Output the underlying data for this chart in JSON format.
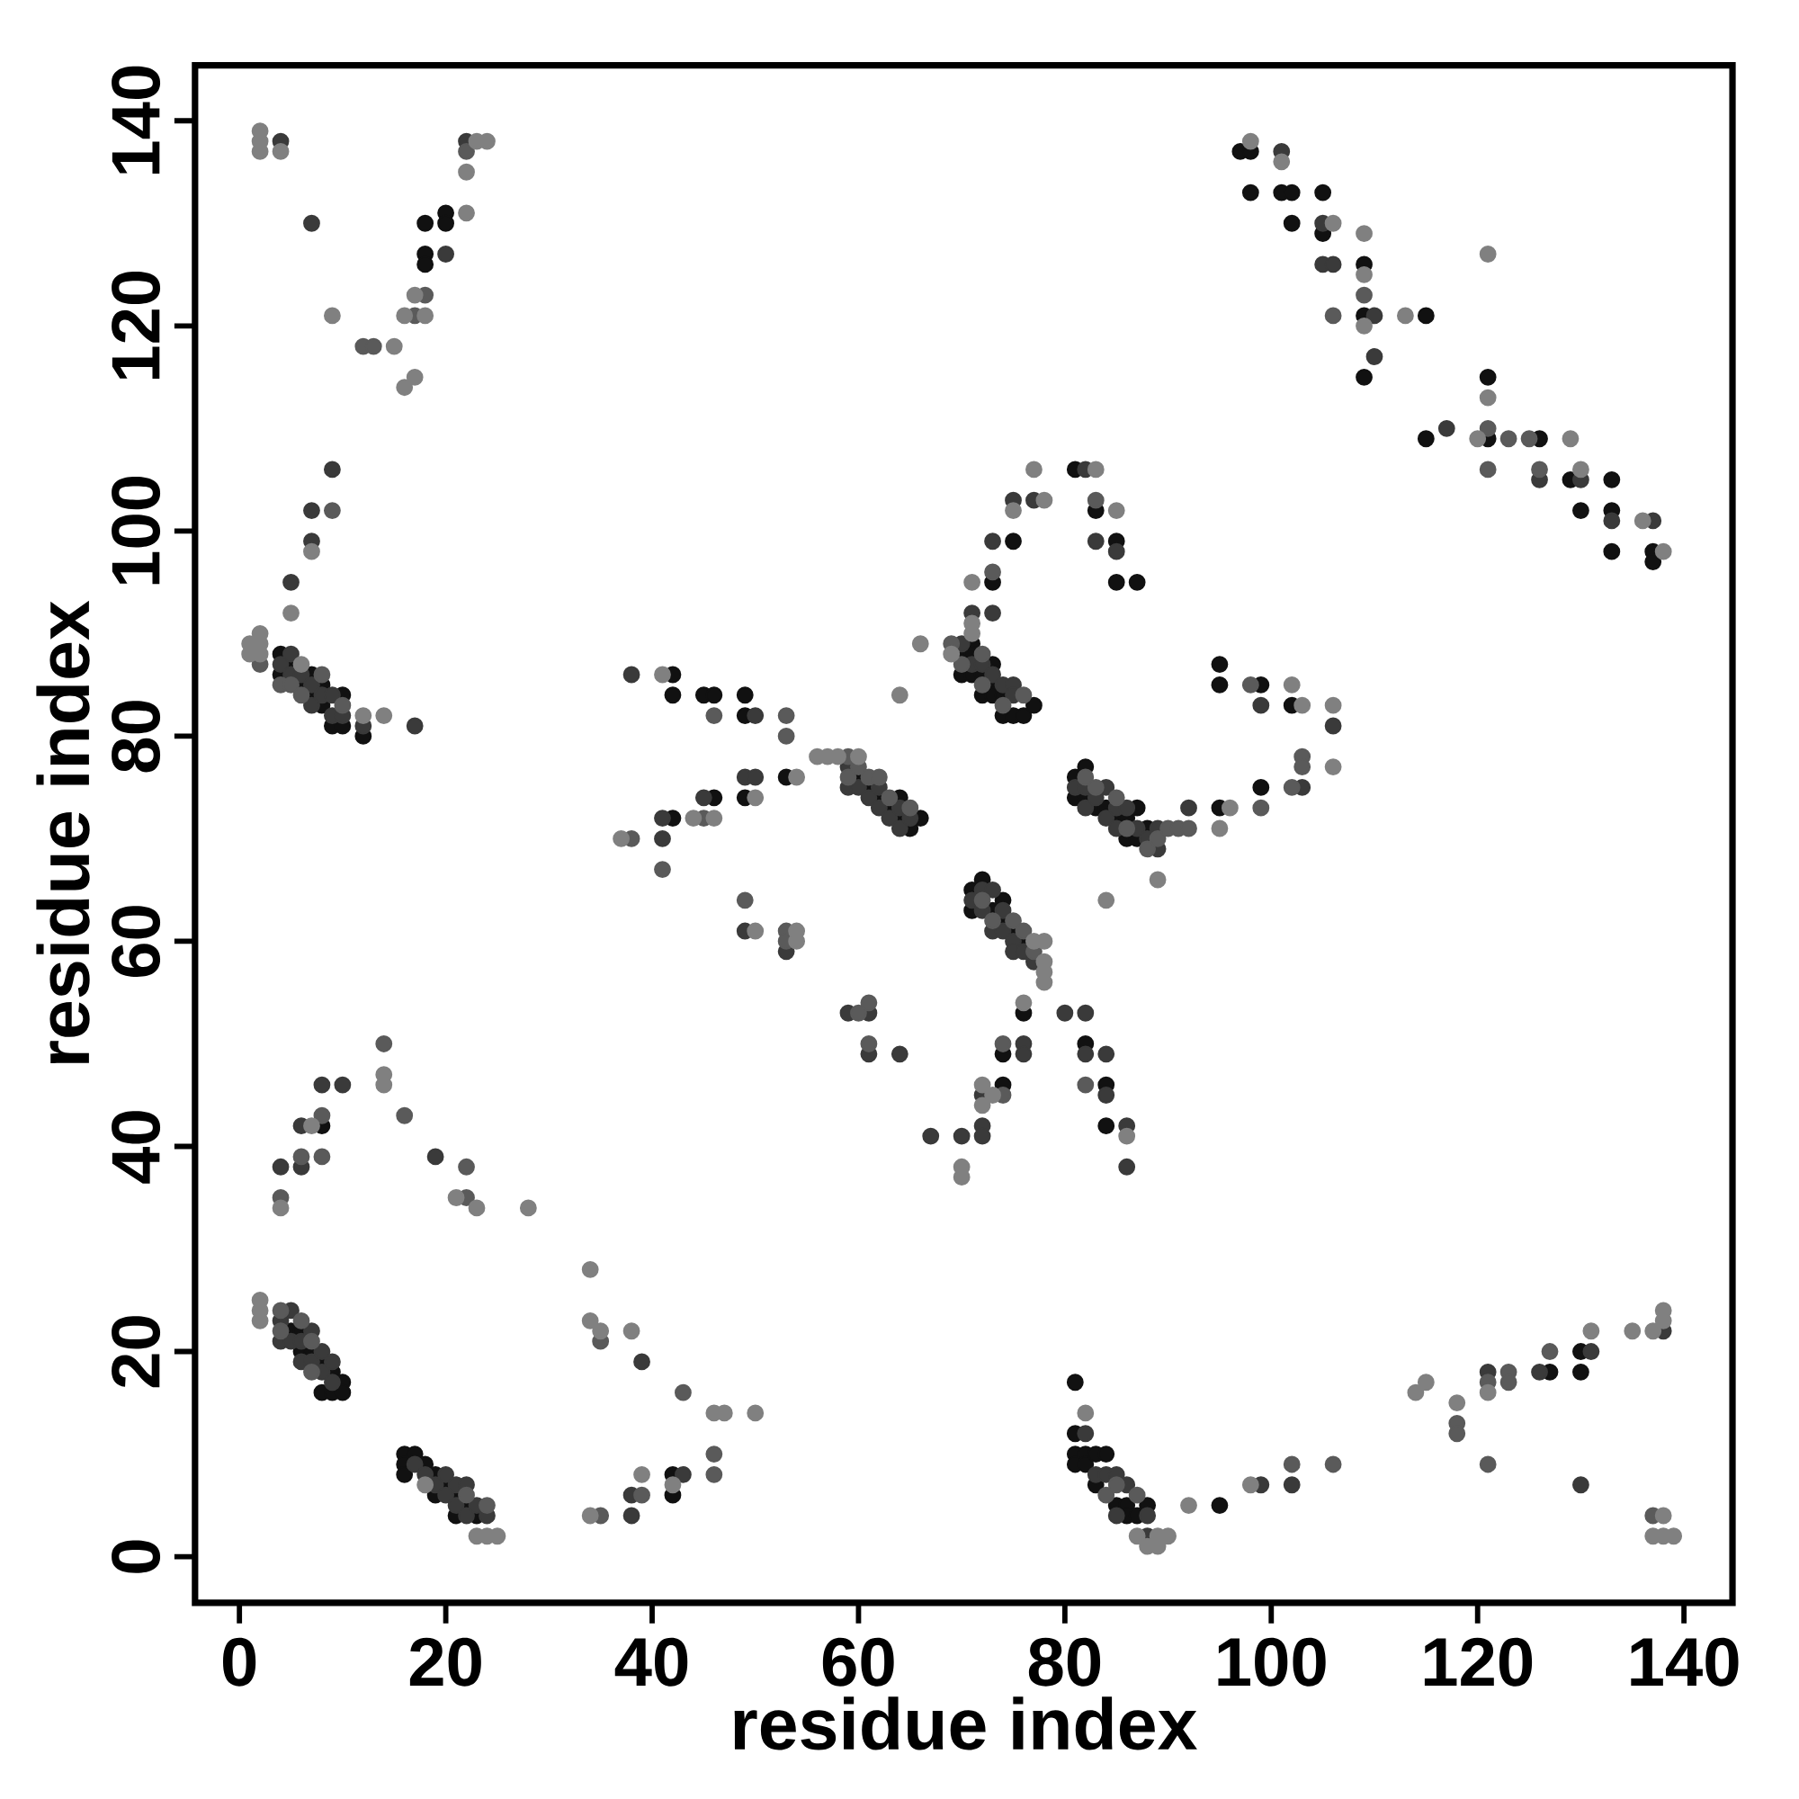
{
  "chart_data": {
    "type": "scatter",
    "xlabel": "residue index",
    "ylabel": "residue index",
    "xlim": [
      -4.3,
      144.7
    ],
    "ylim": [
      -4.5,
      145.4
    ],
    "xticks": [
      0,
      20,
      40,
      60,
      80,
      100,
      120,
      140
    ],
    "yticks": [
      0,
      20,
      40,
      60,
      80,
      100,
      120,
      140
    ],
    "marker": "circle",
    "series": [
      {
        "color": "#111111",
        "x": [
          5,
          6,
          6,
          7,
          8,
          8,
          9,
          9,
          10,
          10,
          16,
          16,
          16,
          17,
          18,
          19,
          19,
          20,
          21,
          21,
          22,
          23,
          81,
          81,
          81,
          81,
          82,
          82,
          83,
          83,
          84,
          85,
          86,
          86,
          87,
          88,
          95,
          127,
          130,
          130,
          42,
          42,
          8,
          4,
          4,
          5,
          6,
          7,
          7,
          8,
          8,
          9,
          10,
          10,
          12,
          18,
          18,
          18,
          20,
          20,
          42,
          42,
          42,
          45,
          46,
          46,
          49,
          49,
          49,
          53,
          60,
          61,
          62,
          63,
          64,
          64,
          65,
          66,
          70,
          70,
          71,
          71,
          71,
          72,
          72,
          73,
          73,
          73,
          73,
          74,
          74,
          75,
          75,
          76,
          77,
          81,
          83,
          85,
          85,
          87,
          71,
          71,
          72,
          73,
          74,
          74,
          75,
          76,
          76,
          74,
          74,
          82,
          84,
          84,
          81,
          81,
          82,
          82,
          83,
          84,
          85,
          86,
          86,
          87,
          87,
          88,
          95,
          95,
          95,
          99,
          99,
          102,
          97,
          98,
          98,
          101,
          102,
          102,
          105,
          105,
          109,
          109,
          109,
          115,
          115,
          121,
          121,
          126,
          129,
          130,
          133,
          133,
          133,
          137,
          137
        ],
        "values": [
          22,
          22,
          20,
          20,
          19,
          16,
          18,
          16,
          17,
          16,
          10,
          9,
          8,
          10,
          9,
          8,
          6,
          7,
          6,
          4,
          5,
          4,
          12,
          17,
          10,
          9,
          10,
          9,
          10,
          7,
          10,
          5,
          5,
          4,
          4,
          5,
          5,
          18,
          20,
          18,
          8,
          6,
          42,
          88,
          86,
          87,
          85,
          86,
          84,
          85,
          83,
          81,
          84,
          81,
          80,
          127,
          126,
          130,
          131,
          130,
          86,
          84,
          72,
          84,
          84,
          74,
          84,
          82,
          74,
          76,
          76,
          75,
          74,
          73,
          74,
          72,
          71,
          72,
          88,
          86,
          89,
          88,
          86,
          86,
          84,
          95,
          87,
          85,
          84,
          84,
          82,
          99,
          82,
          82,
          83,
          106,
          102,
          99,
          95,
          95,
          65,
          63,
          66,
          63,
          64,
          62,
          61,
          60,
          53,
          49,
          46,
          50,
          46,
          42,
          76,
          74,
          77,
          74,
          73,
          73,
          72,
          72,
          70,
          73,
          70,
          71,
          87,
          85,
          73,
          85,
          75,
          83,
          137,
          137,
          133,
          133,
          133,
          130,
          133,
          129,
          126,
          121,
          115,
          121,
          109,
          115,
          109,
          109,
          105,
          102,
          105,
          102,
          98,
          98,
          97
        ]
      },
      {
        "color": "#3a3a3a",
        "x": [
          4,
          4,
          5,
          5,
          6,
          6,
          7,
          7,
          8,
          8,
          9,
          9,
          17,
          18,
          19,
          20,
          20,
          21,
          21,
          22,
          22,
          23,
          24,
          82,
          83,
          84,
          85,
          85,
          86,
          88,
          88,
          99,
          102,
          121,
          126,
          130,
          131,
          138,
          39,
          38,
          38,
          43,
          4,
          6,
          6,
          8,
          10,
          19,
          4,
          5,
          5,
          6,
          7,
          7,
          8,
          9,
          9,
          10,
          12,
          17,
          5,
          7,
          7,
          9,
          4,
          7,
          20,
          22,
          38,
          41,
          41,
          45,
          49,
          49,
          50,
          50,
          53,
          59,
          59,
          60,
          61,
          62,
          62,
          63,
          64,
          64,
          65,
          59,
          61,
          61,
          64,
          67,
          70,
          70,
          71,
          71,
          72,
          73,
          73,
          73,
          74,
          75,
          75,
          75,
          77,
          82,
          83,
          85,
          71,
          72,
          72,
          73,
          73,
          74,
          74,
          75,
          75,
          76,
          77,
          76,
          76,
          72,
          72,
          72,
          80,
          82,
          82,
          84,
          84,
          86,
          86,
          81,
          82,
          82,
          83,
          84,
          84,
          85,
          85,
          86,
          87,
          88,
          89,
          89,
          92,
          99,
          103,
          106,
          101,
          105,
          105,
          106,
          110,
          110,
          117,
          126,
          130,
          133,
          137
        ],
        "values": [
          23,
          21,
          24,
          21,
          21,
          19,
          22,
          19,
          20,
          18,
          19,
          17,
          9,
          8,
          7,
          8,
          6,
          7,
          5,
          7,
          4,
          5,
          4,
          12,
          8,
          8,
          8,
          4,
          7,
          4,
          2,
          7,
          7,
          18,
          18,
          7,
          20,
          22,
          19,
          6,
          4,
          8,
          38,
          42,
          38,
          46,
          46,
          39,
          87,
          88,
          86,
          86,
          85,
          83,
          84,
          84,
          82,
          82,
          81,
          81,
          95,
          99,
          102,
          106,
          138,
          130,
          127,
          138,
          86,
          72,
          70,
          74,
          76,
          61,
          82,
          76,
          59,
          77,
          75,
          75,
          74,
          75,
          73,
          72,
          73,
          71,
          72,
          53,
          53,
          49,
          49,
          41,
          41,
          89,
          92,
          87,
          87,
          99,
          92,
          86,
          85,
          103,
          85,
          84,
          103,
          106,
          99,
          98,
          64,
          65,
          63,
          65,
          61,
          63,
          61,
          60,
          59,
          59,
          58,
          50,
          49,
          45,
          42,
          41,
          53,
          53,
          49,
          49,
          45,
          42,
          38,
          75,
          75,
          73,
          74,
          75,
          72,
          73,
          71,
          73,
          71,
          70,
          71,
          69,
          73,
          83,
          75,
          81,
          137,
          130,
          126,
          126,
          121,
          117,
          110,
          105,
          105,
          101,
          101
        ]
      },
      {
        "color": "#5a5a5a",
        "x": [
          4,
          4,
          6,
          7,
          7,
          22,
          24,
          84,
          85,
          87,
          102,
          106,
          118,
          118,
          121,
          121,
          123,
          123,
          127,
          137,
          35,
          35,
          39,
          43,
          46,
          46,
          4,
          6,
          8,
          8,
          14,
          16,
          22,
          22,
          2,
          4,
          5,
          6,
          8,
          10,
          9,
          12,
          13,
          17,
          18,
          22,
          38,
          41,
          45,
          46,
          49,
          53,
          53,
          53,
          53,
          59,
          59,
          60,
          61,
          62,
          63,
          65,
          60,
          61,
          61,
          69,
          70,
          72,
          72,
          73,
          74,
          76,
          83,
          72,
          73,
          75,
          76,
          77,
          74,
          74,
          82,
          82,
          83,
          85,
          86,
          88,
          89,
          90,
          91,
          92,
          98,
          99,
          103,
          103,
          102,
          106,
          109,
          121,
          121,
          123,
          125,
          126
        ],
        "values": [
          24,
          22,
          23,
          21,
          18,
          6,
          5,
          6,
          7,
          6,
          9,
          9,
          13,
          12,
          17,
          9,
          18,
          17,
          20,
          4,
          21,
          4,
          6,
          16,
          10,
          8,
          35,
          39,
          43,
          39,
          50,
          43,
          38,
          35,
          87,
          85,
          85,
          84,
          86,
          83,
          102,
          118,
          118,
          121,
          123,
          137,
          70,
          67,
          72,
          82,
          64,
          82,
          80,
          61,
          60,
          78,
          76,
          77,
          76,
          76,
          74,
          73,
          53,
          54,
          50,
          89,
          87,
          88,
          85,
          96,
          83,
          84,
          103,
          64,
          62,
          62,
          61,
          59,
          50,
          45,
          46,
          76,
          75,
          74,
          71,
          69,
          70,
          71,
          71,
          71,
          85,
          73,
          78,
          77,
          75,
          121,
          123,
          110,
          106,
          109,
          109,
          106
        ]
      },
      {
        "color": "#808080",
        "x": [
          2,
          2,
          2,
          18,
          23,
          24,
          25,
          82,
          87,
          88,
          89,
          89,
          90,
          92,
          98,
          114,
          115,
          118,
          121,
          131,
          135,
          137,
          138,
          138,
          138,
          137,
          138,
          139,
          34,
          34,
          35,
          34,
          38,
          39,
          42,
          46,
          47,
          50,
          4,
          7,
          14,
          14,
          21,
          23,
          28,
          1,
          1,
          2,
          2,
          2,
          6,
          12,
          14,
          5,
          7,
          2,
          2,
          2,
          4,
          9,
          15,
          16,
          16,
          17,
          17,
          18,
          22,
          22,
          23,
          24,
          37,
          41,
          44,
          46,
          50,
          50,
          54,
          54,
          54,
          56,
          57,
          58,
          60,
          64,
          66,
          70,
          70,
          69,
          71,
          71,
          71,
          75,
          77,
          78,
          83,
          85,
          77,
          78,
          78,
          78,
          78,
          76,
          72,
          72,
          73,
          86,
          84,
          89,
          95,
          96,
          102,
          103,
          106,
          106,
          98,
          101,
          106,
          109,
          109,
          109,
          113,
          120,
          121,
          121,
          129,
          130,
          136,
          138
        ],
        "values": [
          25,
          24,
          23,
          7,
          2,
          2,
          2,
          14,
          2,
          1,
          1,
          2,
          2,
          5,
          7,
          16,
          17,
          15,
          16,
          22,
          22,
          22,
          24,
          23,
          4,
          2,
          2,
          2,
          28,
          23,
          22,
          4,
          22,
          8,
          7,
          14,
          14,
          14,
          34,
          42,
          47,
          46,
          35,
          34,
          34,
          89,
          88,
          90,
          89,
          88,
          87,
          82,
          82,
          92,
          98,
          139,
          138,
          137,
          137,
          121,
          118,
          114,
          121,
          115,
          123,
          121,
          135,
          131,
          138,
          138,
          70,
          86,
          72,
          72,
          74,
          61,
          61,
          60,
          76,
          78,
          78,
          78,
          78,
          84,
          89,
          38,
          37,
          88,
          95,
          91,
          90,
          102,
          106,
          103,
          106,
          102,
          60,
          60,
          58,
          57,
          56,
          54,
          46,
          44,
          45,
          41,
          64,
          66,
          71,
          73,
          85,
          83,
          83,
          77,
          138,
          136,
          130,
          129,
          125,
          120,
          121,
          109,
          127,
          113,
          109,
          106,
          101,
          98
        ]
      }
    ]
  }
}
